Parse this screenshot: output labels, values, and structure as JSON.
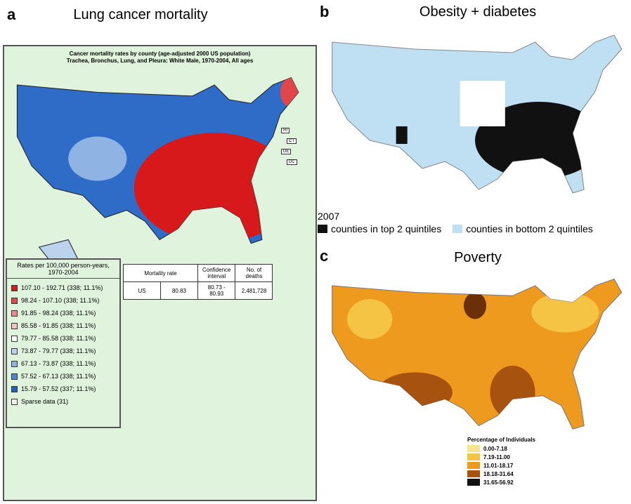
{
  "panels": [
    {
      "label": "a",
      "title": "Lung cancer mortality",
      "map_title": [
        "Cancer mortality rates by county (age-adjusted 2000 US population)",
        "Trachea, Bronchus, Lung, and Pleura: White Male, 1970-2004, All ages"
      ],
      "state_labels": [
        "RI",
        "CT",
        "DE",
        "DC"
      ],
      "legend": {
        "title": "Rates per 100,000 person-years, 1970-2004",
        "items": [
          {
            "label": "107.10 - 192.71 (338; 11.1%)",
            "color": "#d7191c"
          },
          {
            "label": "98.24 - 107.10 (338; 11.1%)",
            "color": "#e0474a"
          },
          {
            "label": "91.85 - 98.24 (338; 11.1%)",
            "color": "#ec8a8c"
          },
          {
            "label": "85.58 - 91.85 (338; 11.1%)",
            "color": "#f4c4c4"
          },
          {
            "label": "79.77 - 85.58 (338; 11.1%)",
            "color": "#ffffff"
          },
          {
            "label": "73.87 - 79.77 (338; 11.1%)",
            "color": "#bcd3ee"
          },
          {
            "label": "67.13 - 73.87 (338; 11.1%)",
            "color": "#8fb4e3"
          },
          {
            "label": "57.52 - 67.13 (338; 11.1%)",
            "color": "#4f86cf"
          },
          {
            "label": "15.79 - 57.52 (337; 11.1%)",
            "color": "#1f5fbf"
          },
          {
            "label": "Sparse data (31)",
            "color": "#f4f4f4"
          }
        ]
      },
      "table": {
        "header": [
          "Mortality rate",
          "Confidence interval",
          "No. of deaths"
        ],
        "rows": [
          [
            "US",
            "80.83",
            "80.73 - 80.93",
            "2,481,728"
          ]
        ]
      }
    },
    {
      "label": "b",
      "title": "Obesity + diabetes",
      "year": "2007",
      "legend": {
        "items": [
          {
            "label": "counties in top 2 quintiles",
            "color": "#111111"
          },
          {
            "label": "counties in bottom 2 quintiles",
            "color": "#bfe0f3"
          }
        ]
      }
    },
    {
      "label": "c",
      "title": "Poverty",
      "legend": {
        "title": "Percentage of Individuals",
        "items": [
          {
            "label": "0.00-7.18",
            "color": "#f7e58a"
          },
          {
            "label": "7.19-11.00",
            "color": "#f6c445"
          },
          {
            "label": "11.01-18.17",
            "color": "#ee9a1e"
          },
          {
            "label": "18.18-31.64",
            "color": "#a8520f"
          },
          {
            "label": "31.65-56.92",
            "color": "#111111"
          }
        ]
      }
    }
  ]
}
